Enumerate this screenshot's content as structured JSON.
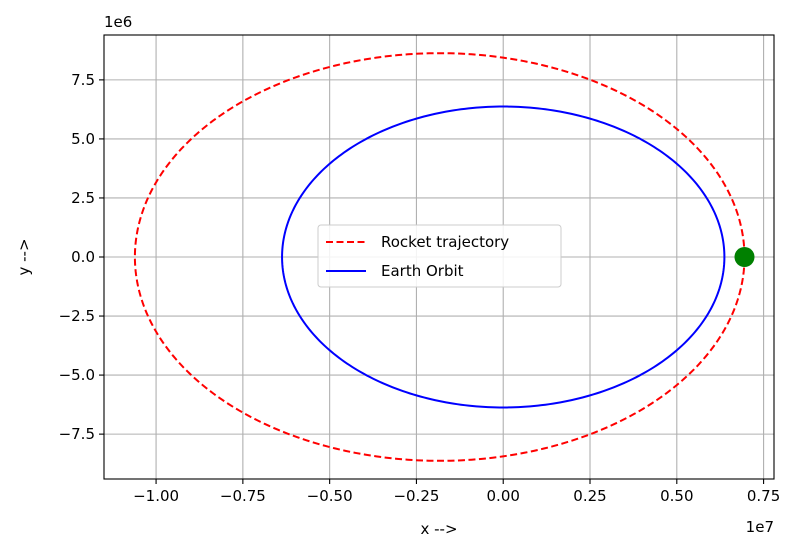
{
  "chart_data": {
    "type": "line",
    "title": "",
    "xlabel": "x -->",
    "ylabel": "y -->",
    "x_offset_label": "1e7",
    "y_offset_label": "1e6",
    "xlim": [
      -11500000,
      7800000
    ],
    "ylim": [
      -9400000,
      9400000
    ],
    "x_ticks": [
      -10000000,
      -7500000,
      -5000000,
      -2500000,
      0,
      2500000,
      5000000,
      7500000
    ],
    "x_tick_labels": [
      "−1.00",
      "−0.75",
      "−0.50",
      "−0.25",
      "0.00",
      "0.25",
      "0.50",
      "0.75"
    ],
    "y_ticks": [
      -7500000,
      -5000000,
      -2500000,
      0,
      2500000,
      5000000,
      7500000
    ],
    "y_tick_labels": [
      "−7.5",
      "−5.0",
      "−2.5",
      "0.0",
      "2.5",
      "5.0",
      "7.5"
    ],
    "grid": true,
    "legend_position": "center",
    "series": [
      {
        "name": "Rocket trajectory",
        "color": "#ff0000",
        "style": "dashed",
        "shape": "ellipse",
        "center": [
          -1830000,
          0
        ],
        "semi_axes": [
          8780000,
          8630000
        ]
      },
      {
        "name": "Earth Orbit",
        "color": "#0000ff",
        "style": "solid",
        "shape": "circle",
        "center": [
          0,
          0
        ],
        "radius": 6371000
      }
    ],
    "markers": [
      {
        "x": 6950000,
        "y": 0,
        "color": "#008000"
      }
    ]
  }
}
